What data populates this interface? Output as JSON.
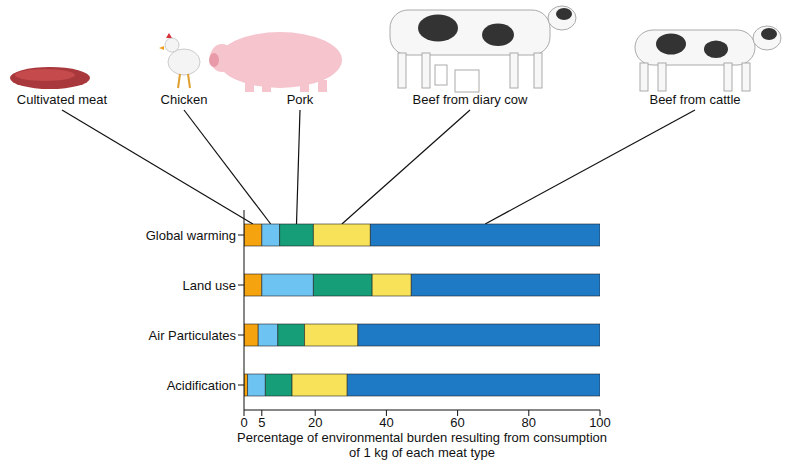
{
  "chart_data": {
    "type": "bar",
    "orientation": "horizontal",
    "stacked": true,
    "categories": [
      "Global warming",
      "Land use",
      "Air Particulates",
      "Acidification"
    ],
    "series": [
      {
        "name": "Cultivated meat",
        "color": "#f5a30f",
        "values": [
          5,
          5,
          4,
          1
        ]
      },
      {
        "name": "Chicken",
        "color": "#6dc3f2",
        "values": [
          5,
          14.5,
          5.5,
          5
        ]
      },
      {
        "name": "Pork",
        "color": "#169e78",
        "values": [
          9.5,
          16.5,
          7.5,
          7.5
        ]
      },
      {
        "name": "Beef from diary cow",
        "color": "#f7e25a",
        "values": [
          16,
          11,
          15,
          15.5
        ]
      },
      {
        "name": "Beef from cattle",
        "color": "#1f7ac6",
        "values": [
          64.5,
          53,
          68,
          71
        ]
      }
    ],
    "xlabel": "Percentage of environmental burden resulting from consumption of 1 kg of each meat type",
    "xlim": [
      0,
      100
    ],
    "xticks": [
      0,
      5,
      20,
      40,
      60,
      80,
      100
    ]
  }
}
